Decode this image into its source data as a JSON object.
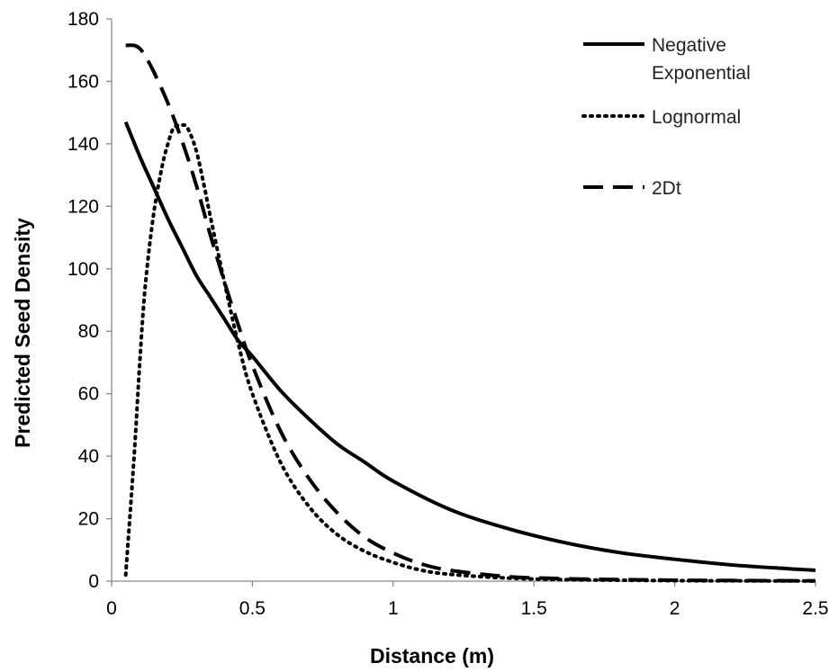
{
  "chart_data": {
    "type": "line",
    "title": "",
    "xlabel": "Distance (m)",
    "ylabel": "Predicted Seed Density",
    "xlim": [
      0,
      2.5
    ],
    "ylim": [
      0,
      180
    ],
    "xticks": [
      "0",
      "0.5",
      "1",
      "1.5",
      "2",
      "2.5"
    ],
    "yticks": [
      "0",
      "20",
      "40",
      "60",
      "80",
      "100",
      "120",
      "140",
      "160",
      "180"
    ],
    "grid": false,
    "legend_position": "top-right",
    "series": [
      {
        "name": "Negative Exponential",
        "style": "solid",
        "color": "#000000",
        "x": [
          0.05,
          0.1,
          0.15,
          0.2,
          0.25,
          0.3,
          0.35,
          0.4,
          0.45,
          0.5,
          0.6,
          0.7,
          0.8,
          0.9,
          1.0,
          1.2,
          1.4,
          1.6,
          1.8,
          2.0,
          2.2,
          2.4,
          2.5
        ],
        "y": [
          147,
          136,
          126,
          116,
          107,
          98,
          91,
          84,
          77,
          72,
          61,
          52,
          44,
          38,
          32,
          23,
          17,
          12.5,
          9.2,
          7.0,
          5.2,
          4.0,
          3.5
        ]
      },
      {
        "name": "Lognormal",
        "style": "dotted",
        "color": "#000000",
        "x": [
          0.05,
          0.08,
          0.1,
          0.12,
          0.15,
          0.18,
          0.2,
          0.22,
          0.25,
          0.27,
          0.3,
          0.33,
          0.35,
          0.4,
          0.45,
          0.5,
          0.6,
          0.7,
          0.8,
          0.9,
          1.0,
          1.1,
          1.2,
          1.4,
          1.6,
          1.8,
          2.0,
          2.2,
          2.5
        ],
        "y": [
          2,
          40,
          70,
          95,
          118,
          133,
          140,
          145,
          146,
          145,
          138,
          126,
          117,
          96,
          76,
          60,
          38,
          24,
          15,
          9.5,
          6,
          3.5,
          2.2,
          1.0,
          0.5,
          0.3,
          0.15,
          0.1,
          0.05
        ]
      },
      {
        "name": "2Dt",
        "style": "dashed",
        "color": "#000000",
        "x": [
          0.05,
          0.08,
          0.1,
          0.12,
          0.15,
          0.2,
          0.25,
          0.3,
          0.35,
          0.4,
          0.45,
          0.5,
          0.6,
          0.7,
          0.8,
          0.9,
          1.0,
          1.1,
          1.2,
          1.4,
          1.6,
          1.8,
          2.0,
          2.2,
          2.5
        ],
        "y": [
          171.5,
          171.5,
          170.5,
          168,
          163,
          153,
          141,
          127,
          111,
          96,
          82,
          69,
          48,
          33,
          22,
          14,
          9,
          5.5,
          3.5,
          1.5,
          0.8,
          0.5,
          0.3,
          0.2,
          0.1
        ]
      }
    ]
  }
}
